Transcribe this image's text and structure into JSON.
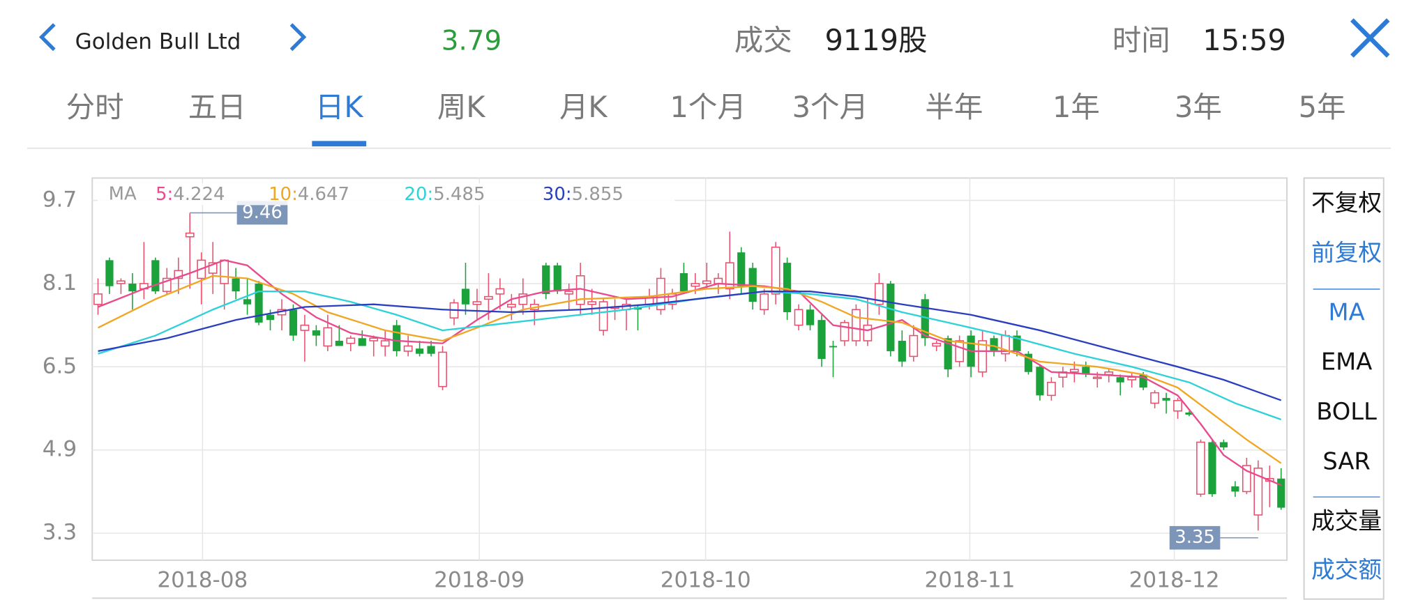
{
  "header": {
    "title": "Golden Bull Ltd",
    "price": 3.79,
    "volume_label": "成交",
    "volume": "9119股",
    "time_label": "时间",
    "time": "15:59"
  },
  "tabs": [
    "分时",
    "五日",
    "日K",
    "周K",
    "月K",
    "1个月",
    "3个月",
    "半年",
    "1年",
    "3年",
    "5年"
  ],
  "side_menu": [
    "不复权",
    "前复权",
    "MA",
    "EMA",
    "BOLL",
    "SAR",
    "成交量",
    "成交额"
  ],
  "chart_data": {
    "type": "candlestick",
    "ma_label": "MA",
    "separator": ":",
    "xlim": [
      -0.5,
      103.5
    ],
    "xticks": [
      {
        "value": 9.1,
        "label": "2018-08"
      },
      {
        "value": 33.2,
        "label": "2018-09"
      },
      {
        "value": 52.9,
        "label": "2018-10"
      },
      {
        "value": 75.9,
        "label": "2018-11"
      },
      {
        "value": 93.7,
        "label": "2018-12"
      }
    ],
    "ylim": [
      2.78,
      10.13
    ],
    "yticks": [
      9.7,
      8.1,
      6.5,
      4.9,
      3.3
    ],
    "grid": true,
    "up_color": "#e8506e",
    "down_color": "#1ba23a",
    "candles": {
      "open": [
        7.7,
        8.55,
        8.1,
        8.1,
        8.0,
        8.55,
        7.95,
        8.2,
        9.0,
        8.2,
        8.3,
        8.1,
        8.2,
        7.8,
        8.1,
        7.5,
        7.5,
        7.6,
        7.2,
        7.2,
        6.9,
        7.0,
        6.95,
        7.05,
        7.0,
        6.9,
        7.3,
        6.8,
        6.85,
        6.9,
        6.12,
        7.44,
        8.0,
        7.7,
        7.8,
        7.9,
        7.65,
        7.7,
        7.6,
        8.45,
        8.45,
        7.9,
        7.7,
        7.7,
        7.2,
        7.65,
        7.6,
        7.65,
        7.7,
        7.6,
        7.7,
        8.3,
        8.05,
        8.1,
        8.1,
        8.0,
        8.7,
        8.4,
        7.6,
        7.9,
        8.5,
        7.3,
        7.6,
        7.4,
        6.9,
        7.0,
        7.0,
        7.0,
        7.7,
        8.1,
        7.0,
        6.7,
        7.8,
        6.9,
        7.05,
        6.6,
        7.1,
        6.4,
        7.05,
        6.75,
        7.1,
        6.75,
        6.5,
        5.95,
        6.3,
        6.4,
        6.5,
        6.3,
        6.35,
        6.3,
        6.25,
        6.35,
        5.8,
        5.9,
        5.65,
        5.62,
        4.05,
        5.05,
        5.05,
        4.2,
        4.1,
        3.65,
        4.3,
        4.35
      ],
      "high": [
        8.2,
        8.6,
        8.2,
        8.3,
        8.9,
        8.6,
        8.4,
        8.6,
        9.46,
        8.7,
        8.9,
        8.5,
        8.4,
        8.2,
        8.15,
        7.6,
        7.8,
        7.7,
        7.5,
        7.3,
        7.5,
        7.3,
        7.1,
        7.2,
        7.1,
        7.2,
        7.4,
        7.1,
        7.0,
        7.0,
        6.9,
        7.8,
        8.5,
        8.0,
        8.3,
        8.2,
        7.9,
        8.2,
        7.8,
        8.5,
        8.5,
        8.1,
        8.5,
        8.0,
        7.8,
        7.8,
        7.8,
        7.7,
        8.0,
        8.4,
        8.0,
        8.5,
        8.3,
        8.5,
        8.3,
        9.1,
        8.8,
        8.5,
        8.0,
        8.9,
        8.6,
        7.7,
        7.7,
        7.5,
        7.0,
        7.4,
        7.7,
        7.8,
        8.3,
        8.15,
        7.2,
        7.3,
        7.9,
        7.0,
        7.1,
        7.1,
        7.2,
        7.2,
        7.1,
        7.2,
        7.2,
        6.8,
        6.55,
        6.3,
        6.5,
        6.6,
        6.6,
        6.4,
        6.45,
        6.35,
        6.4,
        6.4,
        6.05,
        6.0,
        5.9,
        5.65,
        5.1,
        5.1,
        5.1,
        4.3,
        4.75,
        4.7,
        4.6,
        4.55
      ],
      "low": [
        7.5,
        7.9,
        7.9,
        7.6,
        7.8,
        7.9,
        7.9,
        7.9,
        8.0,
        7.7,
        7.9,
        7.6,
        7.8,
        7.5,
        7.3,
        7.2,
        7.2,
        7.0,
        6.6,
        6.9,
        6.8,
        6.9,
        6.8,
        6.9,
        6.7,
        6.7,
        6.7,
        6.7,
        6.7,
        6.7,
        6.05,
        7.3,
        7.5,
        7.4,
        7.4,
        7.6,
        7.4,
        7.5,
        7.3,
        7.8,
        7.9,
        7.6,
        7.5,
        7.5,
        7.1,
        7.4,
        7.2,
        7.2,
        7.6,
        7.5,
        7.6,
        7.9,
        7.9,
        8.0,
        7.9,
        7.8,
        7.9,
        7.6,
        7.5,
        7.7,
        7.4,
        7.2,
        7.2,
        6.5,
        6.3,
        6.9,
        6.9,
        6.9,
        7.5,
        6.7,
        6.5,
        6.6,
        6.9,
        6.8,
        6.3,
        6.5,
        6.3,
        6.3,
        6.7,
        6.6,
        6.7,
        6.35,
        5.85,
        5.85,
        6.1,
        6.2,
        6.3,
        6.1,
        6.2,
        5.95,
        6.1,
        6.05,
        5.7,
        5.6,
        5.5,
        5.55,
        4.0,
        4.0,
        4.9,
        4.0,
        4.05,
        3.35,
        3.8,
        3.75
      ],
      "close": [
        7.9,
        8.05,
        8.15,
        7.95,
        8.1,
        7.95,
        8.2,
        8.35,
        9.07,
        8.55,
        8.5,
        8.55,
        7.95,
        7.7,
        7.35,
        7.4,
        7.6,
        7.1,
        7.3,
        7.1,
        7.25,
        6.9,
        7.05,
        6.9,
        7.05,
        7.0,
        6.8,
        6.9,
        6.75,
        6.75,
        6.78,
        7.73,
        7.7,
        7.75,
        7.85,
        8.0,
        7.7,
        7.9,
        7.7,
        7.9,
        7.95,
        7.95,
        8.25,
        7.75,
        7.75,
        7.65,
        7.7,
        7.6,
        7.85,
        8.2,
        7.9,
        7.95,
        8.1,
        8.15,
        8.2,
        8.5,
        8.05,
        7.75,
        7.9,
        8.8,
        7.55,
        7.6,
        7.3,
        6.65,
        6.88,
        7.35,
        7.6,
        7.3,
        8.1,
        6.8,
        6.6,
        7.1,
        7.05,
        6.95,
        6.45,
        7.0,
        6.5,
        7.0,
        6.8,
        7.1,
        6.8,
        6.4,
        5.95,
        6.2,
        6.4,
        6.45,
        6.35,
        6.3,
        6.4,
        6.2,
        6.3,
        6.1,
        6.0,
        5.85,
        5.85,
        5.58,
        5.05,
        4.05,
        4.95,
        4.1,
        4.6,
        4.55,
        4.35,
        3.79
      ]
    },
    "series": [
      {
        "name": "5",
        "color": "#e84a8c",
        "x": [
          0,
          4,
          8,
          11,
          13,
          16,
          19,
          22,
          26,
          30,
          33,
          36,
          39,
          42,
          46,
          50,
          54,
          58,
          61,
          64,
          67,
          70,
          72,
          76,
          80,
          83,
          87,
          91,
          94,
          96,
          98,
          100,
          103
        ],
        "values": [
          7.65,
          8.0,
          8.3,
          8.55,
          8.45,
          7.9,
          7.45,
          7.15,
          7.0,
          6.95,
          7.4,
          7.8,
          7.95,
          8.0,
          7.8,
          7.85,
          8.1,
          8.05,
          7.95,
          7.3,
          7.2,
          7.4,
          7.1,
          6.8,
          6.8,
          6.4,
          6.35,
          6.3,
          5.95,
          5.4,
          4.8,
          4.5,
          4.224
        ]
      },
      {
        "name": "10",
        "color": "#f0a623",
        "x": [
          0,
          5,
          10,
          13,
          17,
          20,
          25,
          30,
          33,
          37,
          42,
          48,
          53,
          57,
          60,
          63,
          66,
          70,
          74,
          78,
          82,
          87,
          91,
          94,
          97,
          100,
          103
        ],
        "values": [
          7.25,
          7.8,
          8.25,
          8.2,
          7.9,
          7.55,
          7.2,
          7.0,
          7.25,
          7.6,
          7.8,
          7.85,
          8.0,
          8.05,
          8.0,
          7.75,
          7.45,
          7.35,
          7.0,
          6.9,
          6.6,
          6.5,
          6.35,
          6.1,
          5.6,
          5.1,
          4.647
        ]
      },
      {
        "name": "20",
        "color": "#2dd2d8",
        "x": [
          0,
          5,
          10,
          14,
          18,
          22,
          26,
          30,
          34,
          40,
          46,
          52,
          58,
          62,
          66,
          70,
          75,
          80,
          85,
          90,
          95,
          99,
          103
        ],
        "values": [
          6.75,
          7.1,
          7.6,
          7.95,
          7.95,
          7.75,
          7.5,
          7.2,
          7.3,
          7.45,
          7.6,
          7.8,
          7.95,
          7.9,
          7.8,
          7.55,
          7.3,
          7.05,
          6.75,
          6.5,
          6.2,
          5.8,
          5.485
        ]
      },
      {
        "name": "30",
        "color": "#2a3fbf",
        "x": [
          0,
          6,
          12,
          18,
          24,
          30,
          36,
          42,
          48,
          54,
          58,
          62,
          66,
          70,
          76,
          82,
          88,
          94,
          98,
          103
        ],
        "values": [
          6.8,
          7.05,
          7.4,
          7.65,
          7.7,
          7.6,
          7.55,
          7.6,
          7.7,
          7.85,
          7.95,
          7.95,
          7.85,
          7.7,
          7.5,
          7.2,
          6.85,
          6.5,
          6.25,
          5.855
        ]
      }
    ]
  }
}
